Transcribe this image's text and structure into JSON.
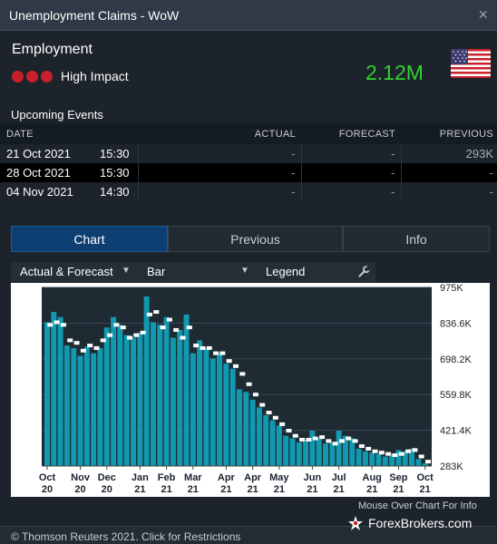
{
  "window": {
    "title": "Unemployment Claims - WoW"
  },
  "indicator": {
    "category": "Employment",
    "impact_label": "High Impact",
    "value": "2.12M",
    "impact_color": "#c8202a",
    "value_color": "#2fd12f",
    "flag_icon": "us-flag-icon"
  },
  "upcoming": {
    "title": "Upcoming Events",
    "columns": {
      "date": "DATE",
      "actual": "ACTUAL",
      "forecast": "FORECAST",
      "previous": "PREVIOUS"
    },
    "rows": [
      {
        "date": "21 Oct 2021",
        "time": "15:30",
        "actual": "-",
        "forecast": "-",
        "previous": "293K"
      },
      {
        "date": "28 Oct 2021",
        "time": "15:30",
        "actual": "-",
        "forecast": "-",
        "previous": "-"
      },
      {
        "date": "04 Nov 2021",
        "time": "14:30",
        "actual": "-",
        "forecast": "-",
        "previous": "-"
      }
    ]
  },
  "tabs": [
    {
      "label": "Chart",
      "active": true
    },
    {
      "label": "Previous",
      "active": false
    },
    {
      "label": "Info",
      "active": false
    }
  ],
  "toolbar": {
    "series_select": "Actual & Forecast",
    "type_select": "Bar",
    "legend_label": "Legend",
    "settings_icon": "wrench-icon"
  },
  "chart_data": {
    "type": "bar",
    "title": "",
    "xlabel": "",
    "ylabel": "",
    "ylim": [
      283,
      975
    ],
    "yticks": [
      "283K",
      "421.4K",
      "559.8K",
      "698.2K",
      "836.6K",
      "975K"
    ],
    "x_ticks": [
      {
        "label": [
          "Oct",
          "20"
        ],
        "index": 0
      },
      {
        "label": [
          "Nov",
          "20"
        ],
        "index": 5
      },
      {
        "label": [
          "Dec",
          "20"
        ],
        "index": 9
      },
      {
        "label": [
          "Jan",
          "21"
        ],
        "index": 14
      },
      {
        "label": [
          "Feb",
          "21"
        ],
        "index": 18
      },
      {
        "label": [
          "Mar",
          "21"
        ],
        "index": 22
      },
      {
        "label": [
          "Apr",
          "21"
        ],
        "index": 27
      },
      {
        "label": [
          "Apr",
          "21"
        ],
        "index": 31
      },
      {
        "label": [
          "May",
          "21"
        ],
        "index": 35
      },
      {
        "label": [
          "Jun",
          "21"
        ],
        "index": 40
      },
      {
        "label": [
          "Jul",
          "21"
        ],
        "index": 44
      },
      {
        "label": [
          "Aug",
          "21"
        ],
        "index": 49
      },
      {
        "label": [
          "Sep",
          "21"
        ],
        "index": 53
      },
      {
        "label": [
          "Oct",
          "21"
        ],
        "index": 57
      }
    ],
    "series": [
      {
        "name": "Actual",
        "color": "#1199b0",
        "values": [
          840,
          880,
          860,
          750,
          740,
          710,
          745,
          720,
          740,
          820,
          860,
          830,
          790,
          780,
          800,
          940,
          840,
          830,
          860,
          780,
          810,
          870,
          720,
          770,
          740,
          700,
          720,
          680,
          660,
          580,
          570,
          540,
          510,
          480,
          460,
          440,
          400,
          390,
          375,
          385,
          420,
          390,
          370,
          375,
          420,
          400,
          390,
          350,
          340,
          335,
          330,
          320,
          330,
          345,
          340,
          350,
          310,
          293
        ]
      },
      {
        "name": "Forecast",
        "color": "#ffffff",
        "values": [
          830,
          840,
          830,
          770,
          760,
          730,
          750,
          740,
          770,
          790,
          830,
          820,
          780,
          790,
          800,
          870,
          880,
          820,
          850,
          810,
          780,
          820,
          750,
          740,
          740,
          720,
          720,
          690,
          670,
          640,
          600,
          560,
          520,
          490,
          470,
          445,
          420,
          400,
          385,
          385,
          390,
          395,
          380,
          370,
          380,
          390,
          380,
          360,
          350,
          340,
          335,
          330,
          325,
          330,
          340,
          345,
          320,
          300
        ]
      }
    ]
  },
  "chart_hint": "Mouse Over Chart For Info",
  "footer": {
    "copyright": "© Thomson Reuters 2021. Click for Restrictions"
  },
  "watermark": {
    "text": "ForexBrokers.com",
    "icon": "forexbrokers-logo-icon"
  }
}
